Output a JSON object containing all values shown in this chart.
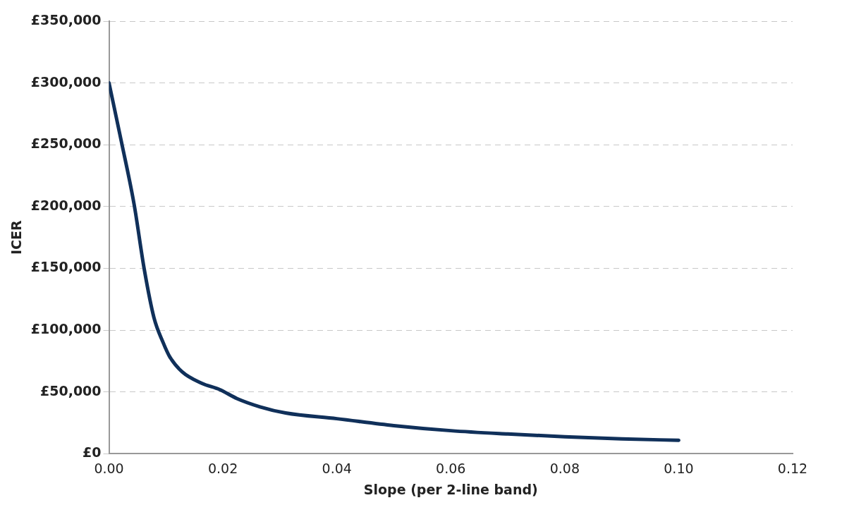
{
  "chart_data": {
    "type": "line",
    "xlabel": "Slope (per 2-line band)",
    "ylabel": "ICER",
    "x": [
      0,
      0.0022,
      0.0044,
      0.0062,
      0.0079,
      0.0095,
      0.0106,
      0.0128,
      0.0163,
      0.0194,
      0.0225,
      0.0265,
      0.031,
      0.04,
      0.05,
      0.06,
      0.07,
      0.08,
      0.09,
      0.1
    ],
    "series": [
      {
        "color": "#10305a",
        "values": [
          300000,
          252000,
          202000,
          149000,
          110000,
          90000,
          79000,
          66500,
          57000,
          52000,
          44600,
          38000,
          33000,
          28400,
          22800,
          18700,
          16000,
          13800,
          12100,
          10900
        ]
      }
    ],
    "xlim": [
      0,
      0.12
    ],
    "xticks": [
      {
        "value": 0,
        "label": "0.00"
      },
      {
        "value": 0.02,
        "label": "0.02"
      },
      {
        "value": 0.04,
        "label": "0.04"
      },
      {
        "value": 0.06,
        "label": "0.06"
      },
      {
        "value": 0.08,
        "label": "0.08"
      },
      {
        "value": 0.1,
        "label": "0.10"
      },
      {
        "value": 0.12,
        "label": "0.12"
      }
    ],
    "ylim": [
      0,
      350000
    ],
    "yticks": [
      {
        "value": 0,
        "label": "£0"
      },
      {
        "value": 50000,
        "label": "£50,000"
      },
      {
        "value": 100000,
        "label": "£100,000"
      },
      {
        "value": 150000,
        "label": "£150,000"
      },
      {
        "value": 200000,
        "label": "£200,000"
      },
      {
        "value": 250000,
        "label": "£250,000"
      },
      {
        "value": 300000,
        "label": "£300,000"
      },
      {
        "value": 350000,
        "label": "£350,000"
      }
    ],
    "grid": "y",
    "legend": false,
    "marker": "none",
    "line_style": "solid"
  }
}
